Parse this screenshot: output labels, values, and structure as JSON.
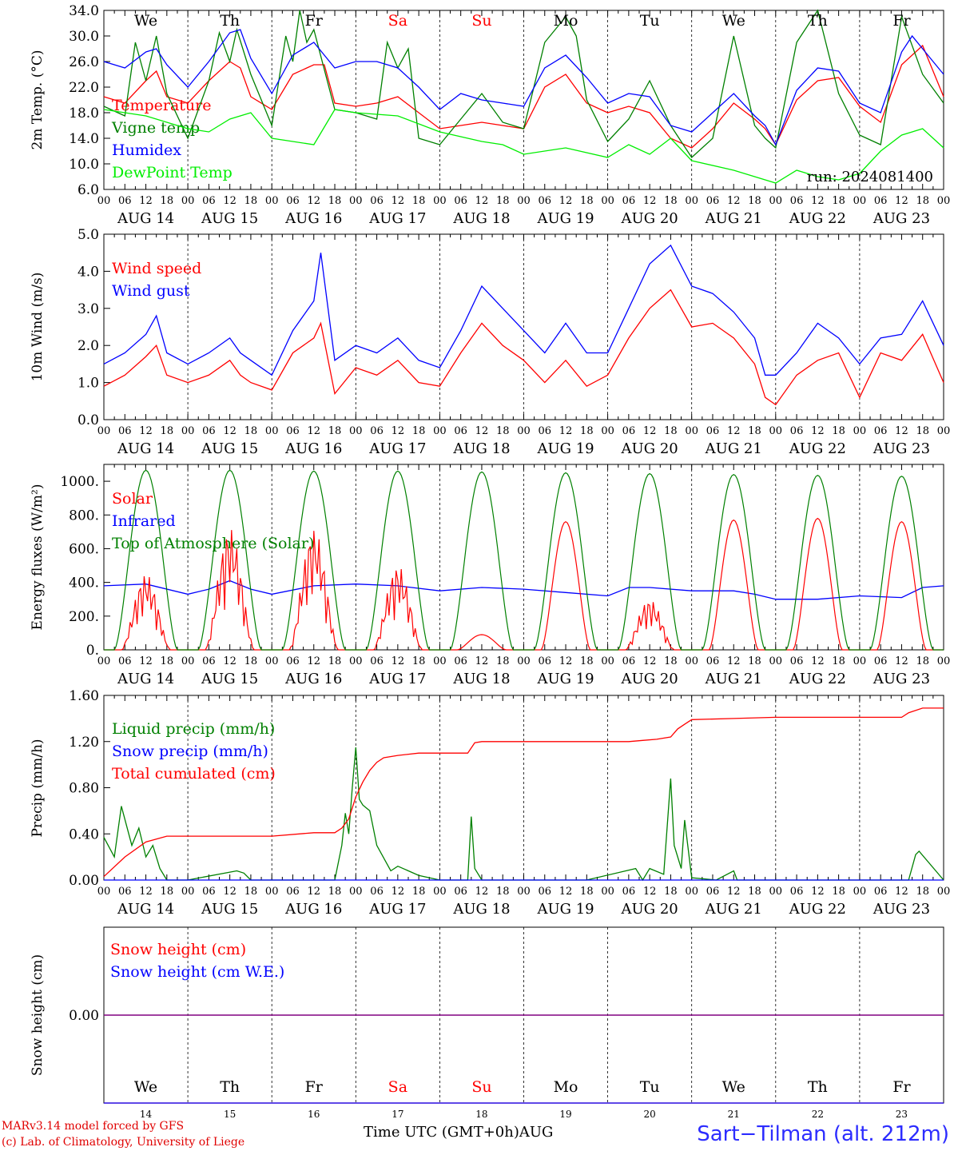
{
  "days": [
    "AUG 14",
    "AUG 15",
    "AUG 16",
    "AUG 17",
    "AUG 18",
    "AUG 19",
    "AUG 20",
    "AUG 21",
    "AUG 22",
    "AUG 23"
  ],
  "weekdays": [
    "We",
    "Th",
    "Fr",
    "Sa",
    "Su",
    "Mo",
    "Tu",
    "We",
    "Th",
    "Fr"
  ],
  "weekend_days": [
    3,
    4
  ],
  "day_numbers": [
    "14",
    "15",
    "16",
    "17",
    "18",
    "19",
    "20",
    "21",
    "22",
    "23"
  ],
  "hour_ticks": [
    "00",
    "06",
    "12",
    "18"
  ],
  "hour_end_tick": "00",
  "month_label": "AUG",
  "run_label": "run: 2024081400",
  "footer": {
    "model": "MARv3.14 model forced by GFS",
    "credit": "(c) Lab. of Climatology, University of Liege",
    "time_label": "Time UTC (GMT+0h)",
    "station": "Sart−Tilman (alt. 212m)"
  },
  "colors": {
    "red": "#ff0000",
    "darkgreen": "#008000",
    "blue": "#0000ff",
    "lightgreen": "#00ee00",
    "purple": "#800080"
  },
  "chart_data": [
    {
      "id": "temperature",
      "type": "line",
      "ylabel": "2m Temp. (°C)",
      "ylim": [
        6,
        34
      ],
      "yticks": [
        "6.0",
        "10.0",
        "14.0",
        "18.0",
        "22.0",
        "26.0",
        "30.0",
        "34.0"
      ],
      "x_range_hours": [
        0,
        240
      ],
      "legend_placement": "top-left",
      "series": [
        {
          "name": "Temperature",
          "color": "red",
          "x": [
            0,
            6,
            12,
            15,
            18,
            24,
            30,
            36,
            39,
            42,
            48,
            54,
            60,
            63,
            66,
            72,
            78,
            84,
            90,
            96,
            102,
            108,
            114,
            120,
            126,
            132,
            138,
            144,
            150,
            156,
            162,
            168,
            174,
            180,
            186,
            189,
            192,
            198,
            204,
            210,
            216,
            222,
            228,
            234,
            240
          ],
          "y": [
            20.5,
            19.5,
            23.0,
            24.5,
            20.5,
            19.5,
            23.0,
            26.0,
            25.0,
            20.5,
            18.5,
            24.0,
            25.5,
            25.5,
            19.5,
            19.0,
            19.5,
            20.5,
            18.0,
            15.5,
            16.0,
            16.5,
            16.0,
            15.5,
            22.0,
            24.0,
            19.5,
            18.0,
            19.0,
            18.0,
            14.0,
            12.5,
            15.5,
            19.5,
            17.0,
            15.5,
            13.0,
            20.0,
            23.0,
            23.5,
            19.0,
            16.5,
            25.5,
            28.5,
            20.5
          ]
        },
        {
          "name": "Vigne temp",
          "color": "darkgreen",
          "x": [
            0,
            6,
            9,
            12,
            15,
            18,
            24,
            30,
            33,
            36,
            38,
            42,
            48,
            52,
            54,
            56,
            58,
            60,
            66,
            72,
            78,
            81,
            84,
            87,
            90,
            96,
            102,
            108,
            114,
            120,
            126,
            132,
            135,
            138,
            144,
            150,
            156,
            162,
            168,
            174,
            180,
            186,
            189,
            192,
            198,
            204,
            210,
            216,
            222,
            228,
            234,
            240
          ],
          "y": [
            19.0,
            17.5,
            29.0,
            23.0,
            30.0,
            21.0,
            14.0,
            23.0,
            30.5,
            26.0,
            31.0,
            24.0,
            16.0,
            30.0,
            26.0,
            34.0,
            29.0,
            31.0,
            18.5,
            18.0,
            17.0,
            29.0,
            25.0,
            28.0,
            14.0,
            13.0,
            17.0,
            21.0,
            16.5,
            15.5,
            29.0,
            33.0,
            30.0,
            20.0,
            13.5,
            17.0,
            23.0,
            16.0,
            11.0,
            14.0,
            30.0,
            16.0,
            14.0,
            12.5,
            29.0,
            34.0,
            21.0,
            14.5,
            13.0,
            33.0,
            24.0,
            19.5
          ]
        },
        {
          "name": "Humidex",
          "color": "blue",
          "x": [
            0,
            6,
            12,
            15,
            18,
            24,
            30,
            36,
            39,
            42,
            48,
            54,
            60,
            66,
            72,
            78,
            84,
            90,
            96,
            102,
            108,
            114,
            120,
            126,
            132,
            138,
            144,
            150,
            156,
            162,
            168,
            174,
            180,
            186,
            189,
            192,
            198,
            204,
            210,
            216,
            222,
            228,
            231,
            234,
            240
          ],
          "y": [
            26.0,
            25.0,
            27.5,
            28.0,
            25.5,
            22.0,
            26.0,
            30.5,
            31.0,
            26.5,
            21.0,
            27.0,
            29.0,
            25.0,
            26.0,
            26.0,
            25.0,
            22.0,
            18.5,
            21.0,
            20.0,
            19.5,
            19.0,
            25.0,
            27.0,
            23.5,
            19.5,
            21.0,
            20.5,
            16.0,
            15.0,
            18.0,
            21.0,
            17.5,
            16.0,
            13.0,
            21.5,
            25.0,
            24.5,
            19.5,
            18.0,
            27.5,
            30.0,
            28.0,
            24.0
          ]
        },
        {
          "name": "DewPoint Temp",
          "color": "lightgreen",
          "x": [
            0,
            12,
            24,
            30,
            36,
            42,
            48,
            60,
            66,
            72,
            84,
            96,
            108,
            114,
            120,
            132,
            144,
            150,
            156,
            162,
            168,
            180,
            186,
            192,
            198,
            204,
            210,
            216,
            222,
            228,
            234,
            240
          ],
          "y": [
            18.5,
            17.5,
            15.5,
            15.0,
            17.0,
            18.0,
            14.0,
            13.0,
            18.5,
            18.0,
            17.5,
            15.0,
            13.5,
            13.0,
            11.5,
            12.5,
            11.0,
            13.0,
            11.5,
            14.0,
            10.5,
            9.0,
            8.0,
            7.0,
            9.0,
            8.0,
            7.5,
            8.5,
            12.0,
            14.5,
            15.5,
            12.5
          ]
        }
      ]
    },
    {
      "id": "wind",
      "type": "line",
      "ylabel": "10m Wind (m/s)",
      "ylim": [
        0,
        5
      ],
      "yticks": [
        "0.0",
        "1.0",
        "2.0",
        "3.0",
        "4.0",
        "5.0"
      ],
      "x_range_hours": [
        0,
        240
      ],
      "legend_placement": "top-left",
      "series": [
        {
          "name": "Wind speed",
          "color": "red",
          "x": [
            0,
            6,
            12,
            15,
            18,
            24,
            30,
            36,
            39,
            42,
            48,
            54,
            60,
            62,
            66,
            72,
            78,
            84,
            90,
            96,
            102,
            108,
            114,
            120,
            126,
            132,
            138,
            144,
            150,
            156,
            162,
            168,
            174,
            180,
            186,
            189,
            192,
            198,
            204,
            210,
            216,
            222,
            228,
            234,
            240
          ],
          "y": [
            0.9,
            1.2,
            1.7,
            2.0,
            1.2,
            1.0,
            1.2,
            1.6,
            1.2,
            1.0,
            0.8,
            1.8,
            2.2,
            2.6,
            0.7,
            1.4,
            1.2,
            1.6,
            1.0,
            0.9,
            1.8,
            2.6,
            2.0,
            1.6,
            1.0,
            1.6,
            0.9,
            1.2,
            2.2,
            3.0,
            3.5,
            2.5,
            2.6,
            2.2,
            1.5,
            0.6,
            0.4,
            1.2,
            1.6,
            1.8,
            0.6,
            1.8,
            1.6,
            2.3,
            1.0
          ]
        },
        {
          "name": "Wind gust",
          "color": "blue",
          "x": [
            0,
            6,
            12,
            15,
            18,
            24,
            30,
            36,
            39,
            42,
            48,
            54,
            60,
            62,
            66,
            72,
            78,
            84,
            90,
            96,
            102,
            108,
            114,
            120,
            126,
            132,
            138,
            144,
            150,
            156,
            162,
            168,
            174,
            180,
            186,
            189,
            192,
            198,
            204,
            210,
            216,
            222,
            228,
            234,
            240
          ],
          "y": [
            1.5,
            1.8,
            2.3,
            2.8,
            1.8,
            1.5,
            1.8,
            2.2,
            1.8,
            1.6,
            1.2,
            2.4,
            3.2,
            4.5,
            1.6,
            2.0,
            1.8,
            2.2,
            1.6,
            1.4,
            2.4,
            3.6,
            3.0,
            2.4,
            1.8,
            2.6,
            1.8,
            1.8,
            3.0,
            4.2,
            4.7,
            3.6,
            3.4,
            2.9,
            2.2,
            1.2,
            1.2,
            1.8,
            2.6,
            2.2,
            1.5,
            2.2,
            2.3,
            3.2,
            2.0
          ]
        }
      ]
    },
    {
      "id": "energy",
      "type": "line",
      "ylabel": "Energy fluxes (W/m²)",
      "ylim": [
        0,
        1100
      ],
      "yticks": [
        "0.",
        "200.",
        "400.",
        "600.",
        "800.",
        "1000."
      ],
      "ytick_values": [
        0,
        200,
        400,
        600,
        800,
        1000
      ],
      "x_range_hours": [
        0,
        240
      ],
      "legend_placement": "top-left",
      "series": [
        {
          "name": "Solar",
          "color": "red",
          "day_peaks": [
            450,
            720,
            720,
            500,
            90,
            760,
            300,
            770,
            780,
            760
          ]
        },
        {
          "name": "Infrared",
          "color": "blue",
          "x": [
            0,
            12,
            24,
            30,
            36,
            42,
            48,
            60,
            72,
            84,
            96,
            108,
            120,
            132,
            144,
            150,
            156,
            168,
            180,
            186,
            192,
            204,
            216,
            228,
            234,
            240
          ],
          "y": [
            380,
            390,
            330,
            360,
            410,
            360,
            330,
            380,
            390,
            380,
            350,
            370,
            360,
            340,
            320,
            370,
            370,
            350,
            350,
            330,
            300,
            300,
            320,
            310,
            370,
            380
          ]
        },
        {
          "name": "Top of Atmosphere (Solar)",
          "color": "darkgreen",
          "day_peaks": [
            1065,
            1065,
            1060,
            1060,
            1055,
            1050,
            1045,
            1040,
            1035,
            1030
          ]
        }
      ]
    },
    {
      "id": "precip",
      "type": "line",
      "ylabel": "Precip (mm/h)",
      "ylim": [
        0,
        1.6
      ],
      "yticks": [
        "0.00",
        "0.40",
        "0.80",
        "1.20",
        "1.60"
      ],
      "x_range_hours": [
        0,
        240
      ],
      "legend_placement": "top-left",
      "series": [
        {
          "name": "Liquid precip (mm/h)",
          "color": "darkgreen",
          "x": [
            0,
            3,
            5,
            8,
            10,
            12,
            14,
            16,
            18,
            24,
            38,
            40,
            42,
            66,
            68,
            69,
            70,
            71,
            72,
            73,
            74,
            76,
            78,
            82,
            84,
            90,
            96,
            104,
            105,
            106,
            108,
            138,
            152,
            154,
            156,
            160,
            162,
            163,
            165,
            166,
            168,
            175,
            180,
            181,
            182,
            230,
            232,
            233,
            240
          ],
          "y": [
            0.37,
            0.2,
            0.64,
            0.3,
            0.45,
            0.2,
            0.3,
            0.1,
            0.0,
            0.0,
            0.08,
            0.06,
            0.0,
            0.0,
            0.3,
            0.58,
            0.4,
            0.8,
            1.15,
            0.7,
            0.65,
            0.6,
            0.3,
            0.08,
            0.12,
            0.04,
            0.0,
            0.0,
            0.55,
            0.1,
            0.0,
            0.0,
            0.1,
            0.0,
            0.1,
            0.05,
            0.88,
            0.3,
            0.1,
            0.52,
            0.02,
            0.0,
            0.08,
            0.0,
            0.0,
            0.0,
            0.22,
            0.25,
            0.0
          ]
        },
        {
          "name": "Snow precip (mm/h)",
          "color": "blue",
          "x": [
            0,
            240
          ],
          "y": [
            0,
            0
          ]
        },
        {
          "name": "Total cumulated (cm)",
          "color": "red",
          "x": [
            0,
            6,
            12,
            18,
            24,
            36,
            48,
            60,
            66,
            68,
            70,
            72,
            74,
            76,
            78,
            80,
            84,
            90,
            96,
            104,
            106,
            108,
            120,
            132,
            144,
            150,
            154,
            158,
            162,
            164,
            166,
            168,
            180,
            192,
            204,
            216,
            228,
            230,
            234,
            240
          ],
          "y": [
            0.03,
            0.2,
            0.33,
            0.38,
            0.38,
            0.38,
            0.38,
            0.41,
            0.41,
            0.45,
            0.53,
            0.72,
            0.85,
            0.95,
            1.02,
            1.06,
            1.08,
            1.1,
            1.1,
            1.1,
            1.19,
            1.2,
            1.2,
            1.2,
            1.2,
            1.2,
            1.21,
            1.22,
            1.24,
            1.31,
            1.35,
            1.39,
            1.4,
            1.41,
            1.41,
            1.41,
            1.41,
            1.45,
            1.49,
            1.49
          ]
        }
      ]
    },
    {
      "id": "snow",
      "type": "line",
      "ylabel": "Snow height (cm)",
      "yticks": [
        "0.00"
      ],
      "x_range_hours": [
        0,
        240
      ],
      "legend_placement": "top-left",
      "series": [
        {
          "name": "Snow height (cm)",
          "color": "red",
          "x": [
            0,
            240
          ],
          "y": [
            0,
            0
          ]
        },
        {
          "name": "Snow height (cm W.E.)",
          "color": "blue",
          "x": [
            0,
            240
          ],
          "y": [
            0,
            0
          ]
        }
      ]
    }
  ]
}
